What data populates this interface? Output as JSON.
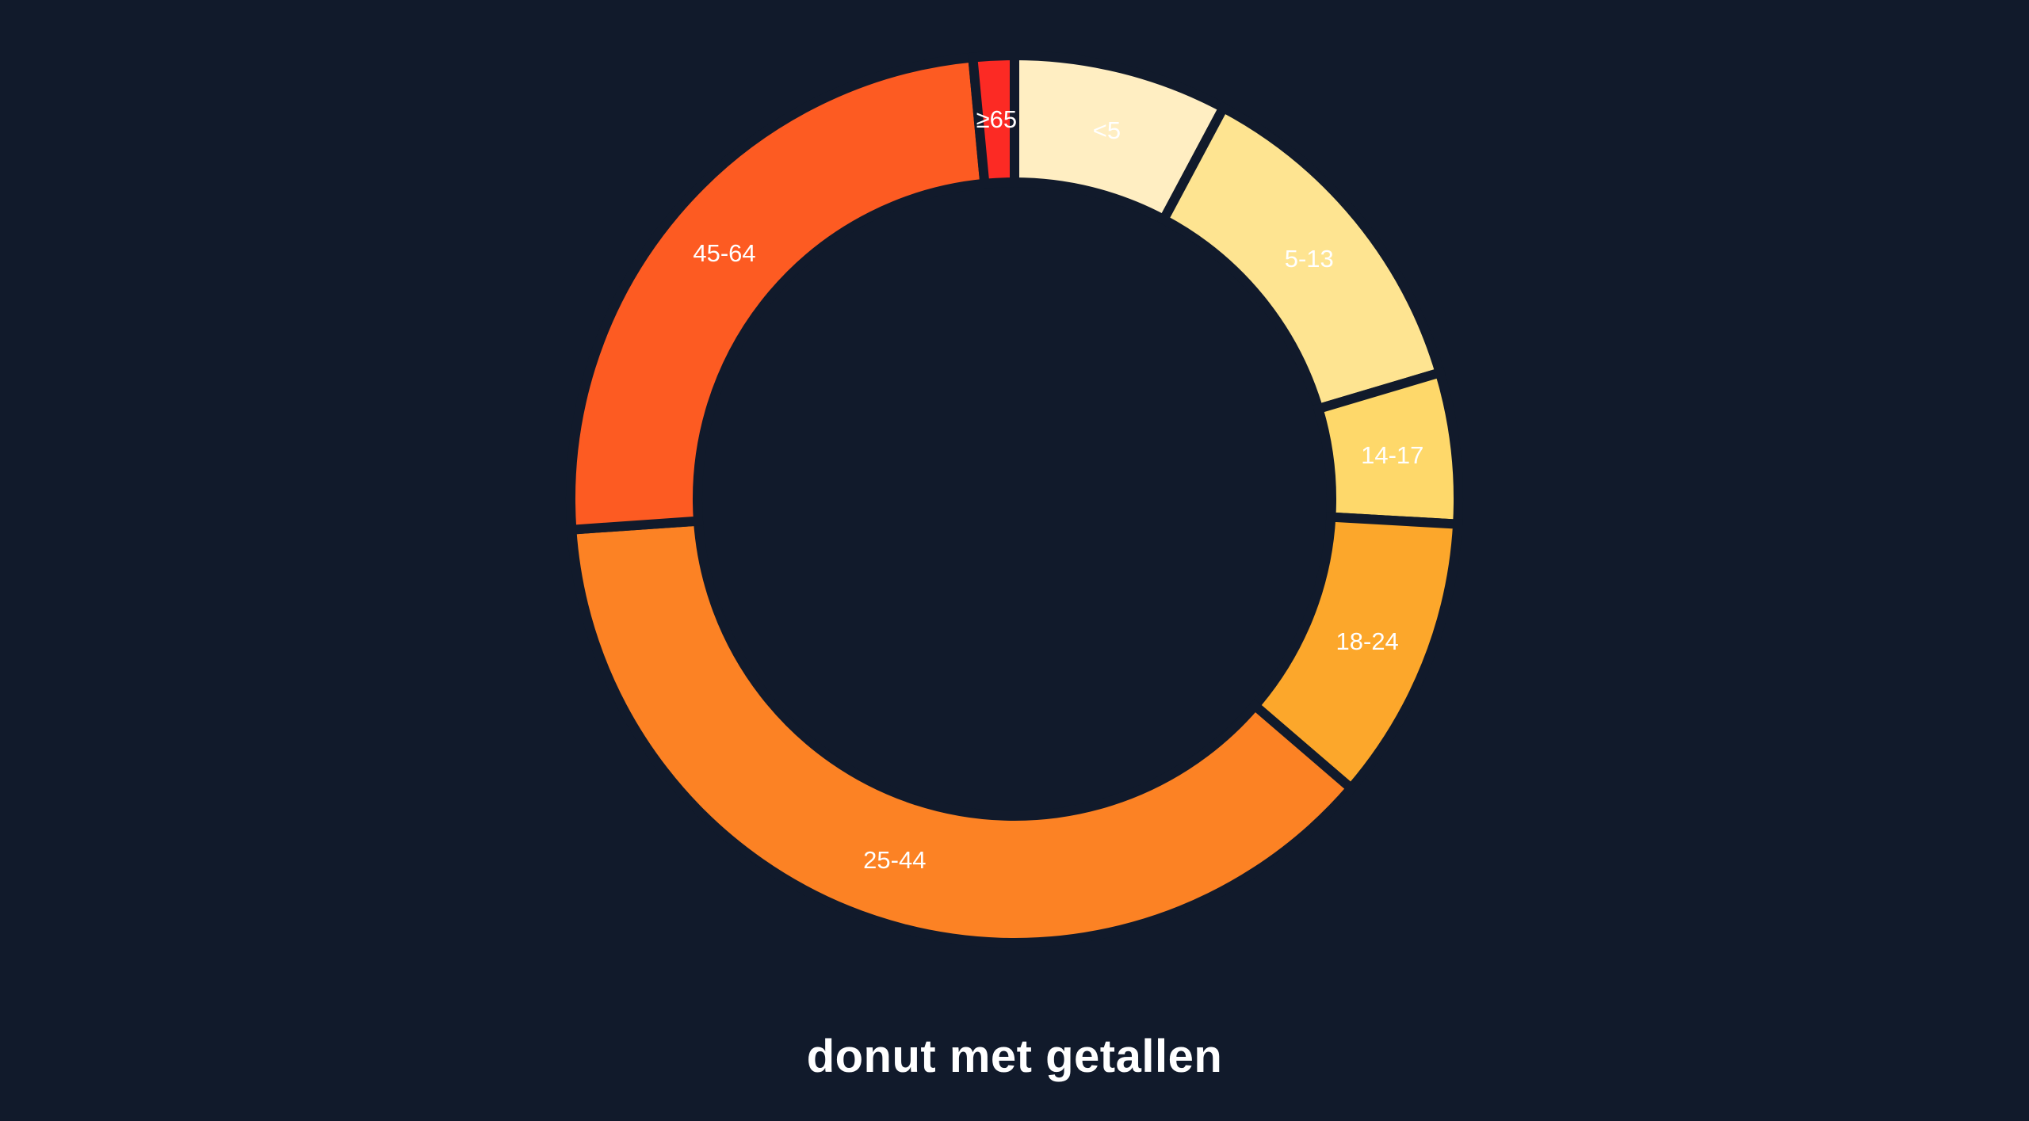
{
  "chart_data": {
    "type": "pie",
    "variant": "donut",
    "title": "donut met getallen",
    "categories": [
      "<5",
      "5-13",
      "14-17",
      "18-24",
      "25-44",
      "45-64",
      "≥65"
    ],
    "values": [
      7.8,
      12.6,
      5.5,
      10.4,
      37.6,
      24.6,
      1.5
    ],
    "unit": "%",
    "colors": [
      "#ffeec2",
      "#fee491",
      "#fed86a",
      "#fca72b",
      "#fc8224",
      "#fd5b22",
      "#fc2a24"
    ],
    "legend": "none",
    "labels_on_slices": true
  },
  "background_color": "#111a2b",
  "separator_color": "#111a2b"
}
